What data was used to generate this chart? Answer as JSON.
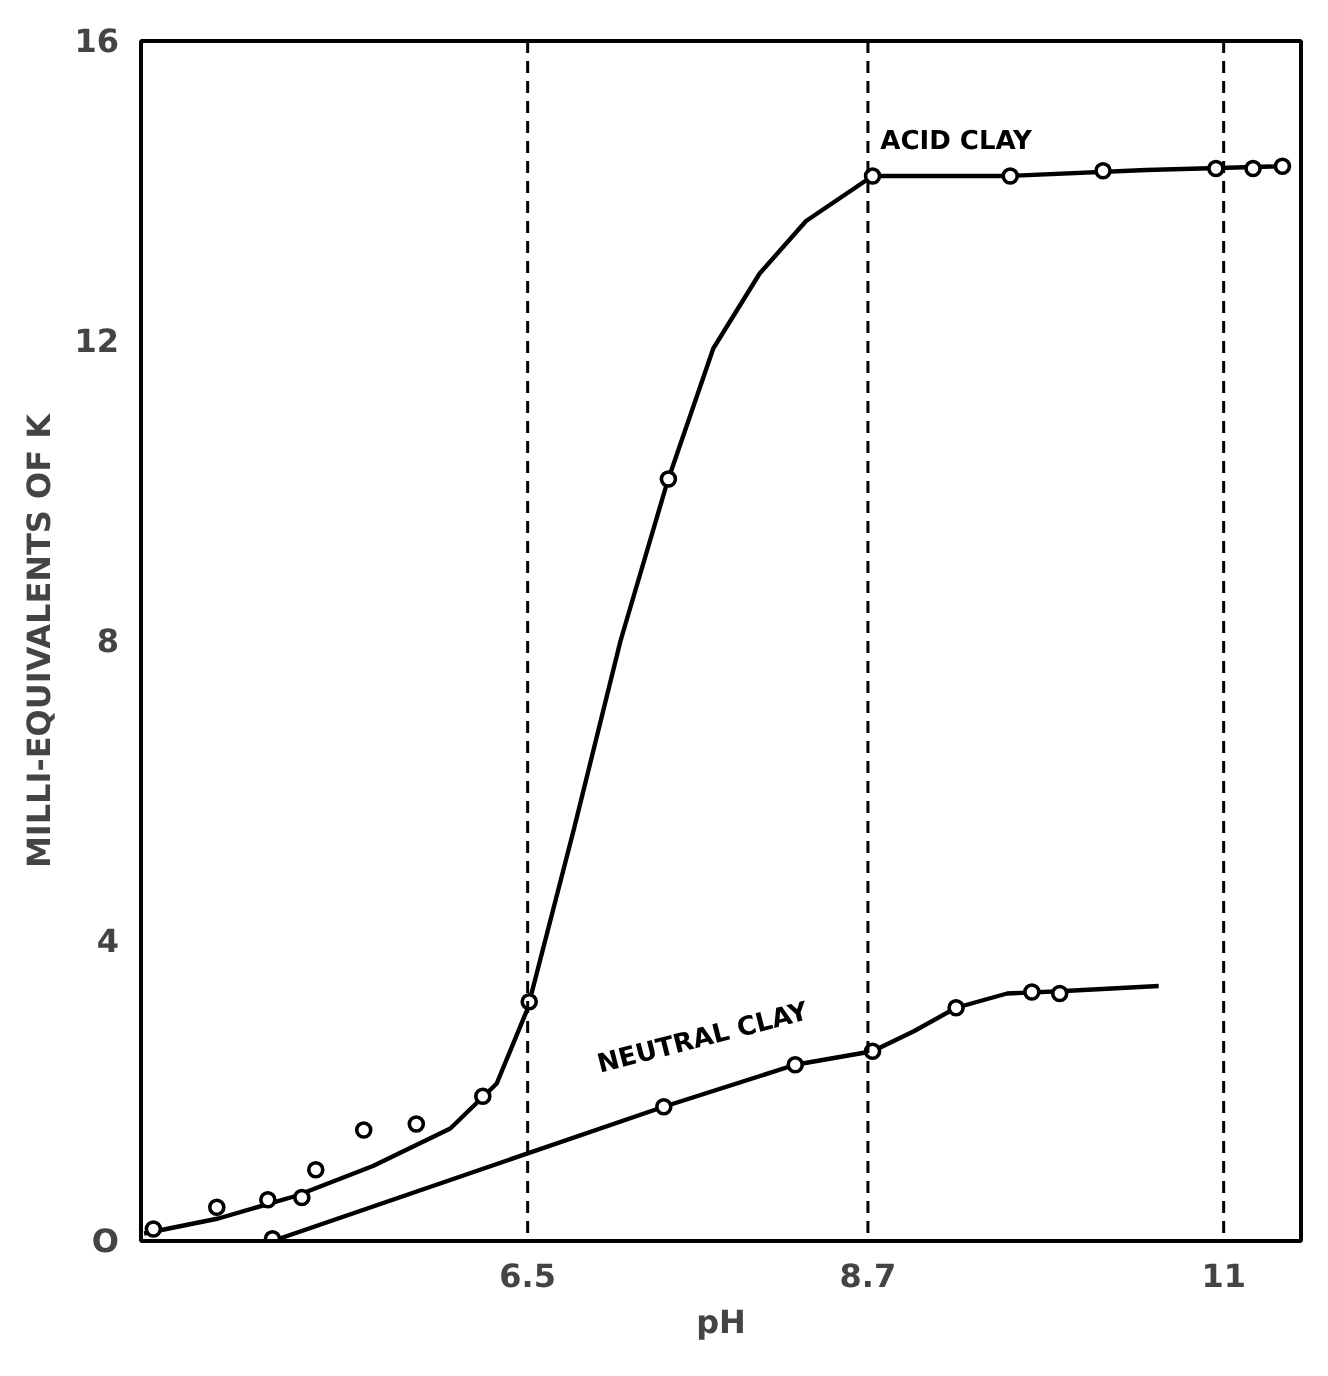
{
  "chart_data": {
    "type": "line",
    "xlabel": "pH",
    "ylabel": "MILLI-EQUIVALENTS OF K",
    "xlim": [
      4.0,
      11.5
    ],
    "ylim": [
      0,
      16
    ],
    "xticks": [
      6.5,
      8.7,
      11
    ],
    "yticks": [
      {
        "value": 0,
        "label": "O"
      },
      4,
      8,
      12,
      16
    ],
    "grid": false,
    "legend": false,
    "line_style": "solid",
    "series": [
      {
        "name": "ACID CLAY",
        "marker": "none",
        "color": "#000000",
        "x": [
          4.02,
          4.5,
          5.0,
          5.5,
          6.0,
          6.3,
          6.5,
          6.8,
          7.1,
          7.4,
          7.7,
          8.0,
          8.3,
          8.73,
          9.6,
          10.5,
          11.38
        ],
        "values": [
          0.1,
          0.3,
          0.6,
          1.0,
          1.5,
          2.1,
          3.1,
          5.5,
          8.0,
          10.1,
          11.9,
          12.9,
          13.6,
          14.2,
          14.2,
          14.28,
          14.33
        ]
      },
      {
        "type": "scatter",
        "marker": "circle",
        "color": "#000000",
        "x": [
          4.08,
          4.49,
          4.82,
          5.04,
          5.13,
          5.44,
          5.78,
          6.21,
          6.51,
          7.41,
          8.73,
          9.62,
          10.22,
          10.95,
          11.19,
          11.38
        ],
        "values": [
          0.16,
          0.45,
          0.55,
          0.58,
          0.95,
          1.48,
          1.56,
          1.93,
          3.19,
          10.16,
          14.2,
          14.2,
          14.27,
          14.3,
          14.3,
          14.33
        ]
      },
      {
        "name": "NEUTRAL CLAY",
        "marker": "none",
        "color": "#000000",
        "x": [
          4.85,
          7.38,
          8.23,
          8.73,
          9.0,
          9.27,
          9.6,
          9.94,
          10.58
        ],
        "values": [
          0.0,
          1.79,
          2.35,
          2.53,
          2.8,
          3.11,
          3.3,
          3.33,
          3.4
        ]
      },
      {
        "type": "scatter",
        "marker": "circle",
        "color": "#000000",
        "x": [
          4.85,
          7.38,
          8.23,
          8.73,
          9.27,
          9.76,
          9.94
        ],
        "values": [
          0.03,
          1.79,
          2.35,
          2.53,
          3.11,
          3.32,
          3.3
        ]
      }
    ],
    "ref_lines": [
      {
        "axis": "x",
        "value": 6.5,
        "line_style": "dashed"
      },
      {
        "axis": "x",
        "value": 8.7,
        "line_style": "dashed"
      },
      {
        "axis": "x",
        "value": 11,
        "line_style": "dashed"
      }
    ]
  }
}
